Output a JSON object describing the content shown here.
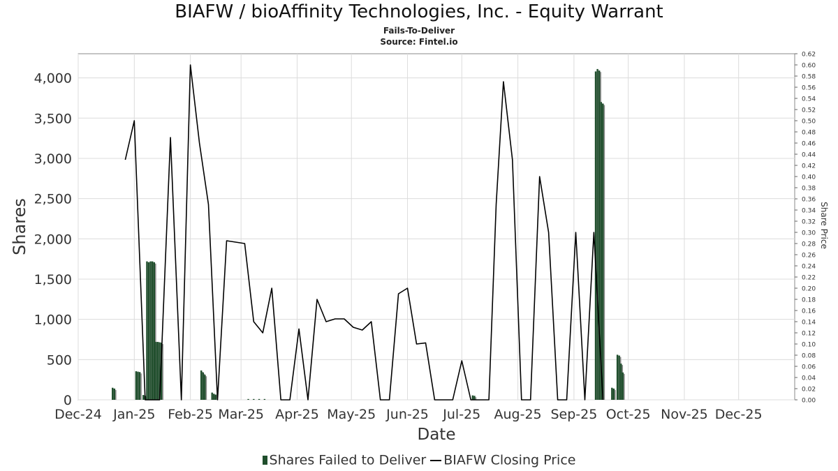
{
  "chart_data": {
    "type": "bar+line",
    "title": "BIAFW / bioAffinity Technologies, Inc. - Equity Warrant",
    "subtitle": "Fails-To-Deliver",
    "source": "Source: Fintel.io",
    "xlabel": "Date",
    "ylabel": "Shares",
    "y2label": "Share Price",
    "ylim": [
      0,
      4300
    ],
    "y2lim": [
      0,
      0.62
    ],
    "x_ticks": [
      "Dec-24",
      "Jan-25",
      "Feb-25",
      "Mar-25",
      "Apr-25",
      "May-25",
      "Jun-25",
      "Jul-25",
      "Aug-25",
      "Sep-25",
      "Oct-25",
      "Nov-25",
      "Dec-25"
    ],
    "y_ticks": [
      "0",
      "500",
      "1,000",
      "1,500",
      "2,000",
      "2,500",
      "3,000",
      "3,500",
      "4,000"
    ],
    "y2_ticks": [
      "0.00",
      "0.02",
      "0.04",
      "0.06",
      "0.08",
      "0.10",
      "0.12",
      "0.14",
      "0.16",
      "0.18",
      "0.20",
      "0.22",
      "0.24",
      "0.26",
      "0.28",
      "0.30",
      "0.32",
      "0.34",
      "0.36",
      "0.38",
      "0.40",
      "0.42",
      "0.44",
      "0.46",
      "0.48",
      "0.50",
      "0.52",
      "0.54",
      "0.56",
      "0.58",
      "0.60",
      "0.62"
    ],
    "grid": true,
    "legend_position": "bottom",
    "series": [
      {
        "name": "Shares Failed to Deliver",
        "type": "bar",
        "color": "#1f4e2c",
        "points": [
          {
            "x": "2024-12-20",
            "y": 150
          },
          {
            "x": "2024-12-21",
            "y": 140
          },
          {
            "x": "2025-01-02",
            "y": 355
          },
          {
            "x": "2025-01-03",
            "y": 350
          },
          {
            "x": "2025-01-04",
            "y": 345
          },
          {
            "x": "2025-01-06",
            "y": 60
          },
          {
            "x": "2025-01-07",
            "y": 50
          },
          {
            "x": "2025-01-08",
            "y": 1720
          },
          {
            "x": "2025-01-09",
            "y": 1710
          },
          {
            "x": "2025-01-10",
            "y": 1720
          },
          {
            "x": "2025-01-11",
            "y": 1720
          },
          {
            "x": "2025-01-12",
            "y": 1710
          },
          {
            "x": "2025-01-13",
            "y": 720
          },
          {
            "x": "2025-01-14",
            "y": 720
          },
          {
            "x": "2025-01-15",
            "y": 715
          },
          {
            "x": "2025-01-16",
            "y": 710
          },
          {
            "x": "2025-02-07",
            "y": 365
          },
          {
            "x": "2025-02-08",
            "y": 340
          },
          {
            "x": "2025-02-09",
            "y": 310
          },
          {
            "x": "2025-02-13",
            "y": 90
          },
          {
            "x": "2025-02-14",
            "y": 75
          },
          {
            "x": "2025-02-15",
            "y": 65
          },
          {
            "x": "2025-03-05",
            "y": 10
          },
          {
            "x": "2025-03-08",
            "y": 10
          },
          {
            "x": "2025-03-11",
            "y": 10
          },
          {
            "x": "2025-03-14",
            "y": 10
          },
          {
            "x": "2025-07-07",
            "y": 55
          },
          {
            "x": "2025-07-08",
            "y": 50
          },
          {
            "x": "2025-09-13",
            "y": 4080
          },
          {
            "x": "2025-09-14",
            "y": 4110
          },
          {
            "x": "2025-09-15",
            "y": 4090
          },
          {
            "x": "2025-09-16",
            "y": 3700
          },
          {
            "x": "2025-09-17",
            "y": 3680
          },
          {
            "x": "2025-09-22",
            "y": 150
          },
          {
            "x": "2025-09-23",
            "y": 140
          },
          {
            "x": "2025-09-25",
            "y": 560
          },
          {
            "x": "2025-09-26",
            "y": 550
          },
          {
            "x": "2025-09-27",
            "y": 450
          },
          {
            "x": "2025-09-28",
            "y": 340
          }
        ]
      },
      {
        "name": "BIAFW Closing Price",
        "type": "line",
        "color": "#000000",
        "points": [
          {
            "x": "2024-12-27",
            "y": 0.43
          },
          {
            "x": "2025-01-01",
            "y": 0.5
          },
          {
            "x": "2025-01-07",
            "y": 0.0
          },
          {
            "x": "2025-01-15",
            "y": 0.0
          },
          {
            "x": "2025-01-21",
            "y": 0.47
          },
          {
            "x": "2025-01-27",
            "y": 0.0
          },
          {
            "x": "2025-02-01",
            "y": 0.6
          },
          {
            "x": "2025-02-06",
            "y": 0.46
          },
          {
            "x": "2025-02-11",
            "y": 0.35
          },
          {
            "x": "2025-02-16",
            "y": 0.0
          },
          {
            "x": "2025-02-21",
            "y": 0.285
          },
          {
            "x": "2025-03-03",
            "y": 0.28
          },
          {
            "x": "2025-03-08",
            "y": 0.14
          },
          {
            "x": "2025-03-13",
            "y": 0.12
          },
          {
            "x": "2025-03-18",
            "y": 0.2
          },
          {
            "x": "2025-03-23",
            "y": 0.0
          },
          {
            "x": "2025-03-28",
            "y": 0.0
          },
          {
            "x": "2025-04-02",
            "y": 0.127
          },
          {
            "x": "2025-04-07",
            "y": 0.0
          },
          {
            "x": "2025-04-12",
            "y": 0.18
          },
          {
            "x": "2025-04-17",
            "y": 0.14
          },
          {
            "x": "2025-04-22",
            "y": 0.145
          },
          {
            "x": "2025-04-27",
            "y": 0.145
          },
          {
            "x": "2025-05-02",
            "y": 0.13
          },
          {
            "x": "2025-05-07",
            "y": 0.125
          },
          {
            "x": "2025-05-12",
            "y": 0.14
          },
          {
            "x": "2025-05-17",
            "y": 0.0
          },
          {
            "x": "2025-05-22",
            "y": 0.0
          },
          {
            "x": "2025-05-27",
            "y": 0.19
          },
          {
            "x": "2025-06-01",
            "y": 0.2
          },
          {
            "x": "2025-06-06",
            "y": 0.1
          },
          {
            "x": "2025-06-11",
            "y": 0.102
          },
          {
            "x": "2025-06-16",
            "y": 0.0
          },
          {
            "x": "2025-06-21",
            "y": 0.0
          },
          {
            "x": "2025-06-26",
            "y": 0.0
          },
          {
            "x": "2025-07-01",
            "y": 0.07
          },
          {
            "x": "2025-07-06",
            "y": 0.0
          },
          {
            "x": "2025-07-11",
            "y": 0.0
          },
          {
            "x": "2025-07-16",
            "y": 0.0
          },
          {
            "x": "2025-07-20",
            "y": 0.35
          },
          {
            "x": "2025-07-24",
            "y": 0.57
          },
          {
            "x": "2025-07-29",
            "y": 0.43
          },
          {
            "x": "2025-08-03",
            "y": 0.0
          },
          {
            "x": "2025-08-08",
            "y": 0.0
          },
          {
            "x": "2025-08-13",
            "y": 0.4
          },
          {
            "x": "2025-08-18",
            "y": 0.3
          },
          {
            "x": "2025-08-23",
            "y": 0.0
          },
          {
            "x": "2025-08-28",
            "y": 0.0
          },
          {
            "x": "2025-09-02",
            "y": 0.3
          },
          {
            "x": "2025-09-07",
            "y": 0.0
          },
          {
            "x": "2025-09-12",
            "y": 0.3
          },
          {
            "x": "2025-09-17",
            "y": 0.0
          }
        ]
      }
    ]
  },
  "legend": {
    "bar_label": "Shares Failed to Deliver",
    "line_label": "BIAFW Closing Price"
  }
}
